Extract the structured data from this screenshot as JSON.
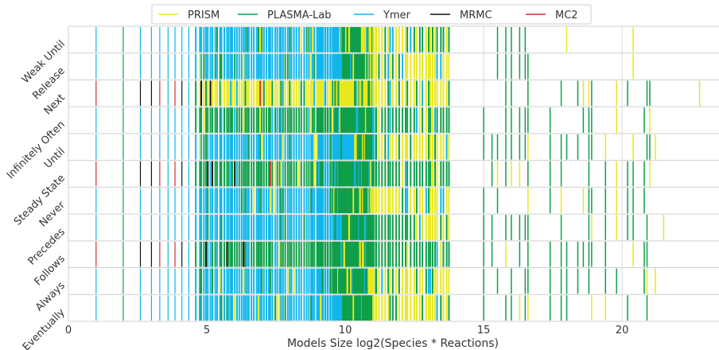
{
  "chart_data": {
    "type": "bar",
    "subtype": "event-strip",
    "xlabel": "Models Size log2(Species * Reactions)",
    "ylabel": "",
    "xlim": [
      0,
      23.5
    ],
    "xticks": [
      0,
      5,
      10,
      15,
      20
    ],
    "grid": true,
    "legend_position": "top-center",
    "categories": [
      "Weak Until",
      "Release",
      "Next",
      "Infinitely Often",
      "Until",
      "Steady State",
      "Never",
      "Precedes",
      "Follows",
      "Always",
      "Eventually"
    ],
    "series": [
      {
        "name": "PRISM",
        "color": "#e8e81f"
      },
      {
        "name": "PLASMA-Lab",
        "color": "#0f9f4a"
      },
      {
        "name": "Ymer",
        "color": "#11b6ea"
      },
      {
        "name": "MRMC",
        "color": "#111111"
      },
      {
        "name": "MC2",
        "color": "#d32f2f"
      }
    ],
    "rows": [
      {
        "ymer": [
          1.0,
          9.9
        ],
        "plasma": [
          9.9,
          10.6
        ],
        "prism": [
          10.6,
          12.6
        ],
        "pl_sparse": [
          15.2,
          16.6
        ],
        "pr_sparse": [
          17.0,
          22.0
        ]
      },
      {
        "ymer": [
          1.0,
          9.9
        ],
        "plasma": [
          9.9,
          10.8
        ],
        "prism": [
          10.8,
          13.8
        ],
        "pl_sparse": [
          14.8,
          16.6
        ],
        "pr_sparse": [
          17.5,
          21.2
        ]
      },
      {
        "mc2": [
          1.0,
          7.4
        ],
        "mrmc": [
          2.6,
          5.0
        ],
        "ymer": [
          1.0,
          4.6
        ],
        "prism": [
          4.6,
          22.8
        ],
        "pl_sparse": [
          15.0,
          21.0
        ],
        "pr_sparse": [
          16.6,
          22.8
        ]
      },
      {
        "ymer": [
          1.0,
          4.6
        ],
        "plasma": [
          4.6,
          14.0
        ],
        "pl_sparse": [
          15.0,
          21.0
        ],
        "pr_sparse": [
          18.5,
          21.0
        ]
      },
      {
        "ymer": [
          1.0,
          10.4
        ],
        "plasma": [
          10.4,
          11.0
        ],
        "prism": [
          11.0,
          13.8
        ],
        "pl_sparse": [
          14.8,
          21.0
        ],
        "pr_sparse": [
          15.0,
          21.2
        ]
      },
      {
        "mc2": [
          1.0,
          7.4
        ],
        "mrmc": [
          2.6,
          5.0
        ],
        "ymer": [
          1.0,
          4.6
        ],
        "plasma": [
          4.6,
          13.8
        ],
        "pl_sparse": [
          15.0,
          21.0
        ],
        "pr_sparse": [
          15.5,
          21.0
        ]
      },
      {
        "ymer": [
          1.0,
          9.4
        ],
        "plasma": [
          9.4,
          10.8
        ],
        "prism": [
          10.8,
          13.8
        ],
        "pl_sparse": [
          15.0,
          21.0
        ],
        "pr_sparse": [
          16.0,
          21.0
        ]
      },
      {
        "ymer": [
          1.0,
          9.9
        ],
        "plasma": [
          9.9,
          12.5
        ],
        "prism": [
          12.5,
          14.0
        ],
        "pl_sparse": [
          15.0,
          21.0
        ],
        "pr_sparse": [
          16.0,
          21.5
        ]
      },
      {
        "mc2": [
          1.0,
          7.4
        ],
        "mrmc": [
          2.6,
          5.0
        ],
        "ymer": [
          1.0,
          4.6
        ],
        "plasma": [
          4.6,
          14.0
        ],
        "pl_sparse": [
          15.0,
          21.0
        ],
        "pr_sparse": [
          15.5,
          21.2
        ]
      },
      {
        "ymer": [
          1.0,
          9.4
        ],
        "plasma": [
          9.4,
          10.8
        ],
        "prism": [
          10.8,
          14.0
        ],
        "pl_sparse": [
          15.0,
          21.0
        ],
        "pr_sparse": [
          16.0,
          21.2
        ]
      },
      {
        "ymer": [
          1.0,
          9.9
        ],
        "plasma": [
          9.9,
          11.0
        ],
        "prism": [
          11.0,
          13.8
        ],
        "pl_sparse": [
          15.0,
          21.0
        ],
        "pr_sparse": [
          16.0,
          21.2
        ]
      }
    ]
  }
}
